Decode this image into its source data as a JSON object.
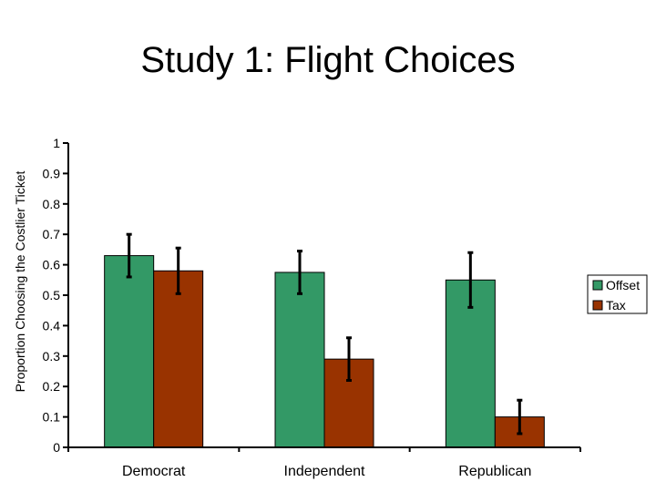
{
  "chart_data": {
    "type": "bar",
    "title": "Study 1: Flight Choices",
    "xlabel": "",
    "ylabel": "Proportion Choosing the Costlier Ticket",
    "categories": [
      "Democrat",
      "Independent",
      "Republican"
    ],
    "yticks": [
      "0",
      "0.1",
      "0.2",
      "0.3",
      "0.4",
      "0.5",
      "0.6",
      "0.7",
      "0.8",
      "0.9",
      "1"
    ],
    "ylim": [
      0,
      1
    ],
    "grid": false,
    "legend_position": "right",
    "series": [
      {
        "name": "Offset",
        "color": "#339966",
        "values": [
          0.63,
          0.575,
          0.55
        ],
        "error": [
          0.07,
          0.07,
          0.09
        ]
      },
      {
        "name": "Tax",
        "color": "#993300",
        "values": [
          0.58,
          0.29,
          0.1
        ],
        "error": [
          0.075,
          0.07,
          0.055
        ]
      }
    ]
  }
}
